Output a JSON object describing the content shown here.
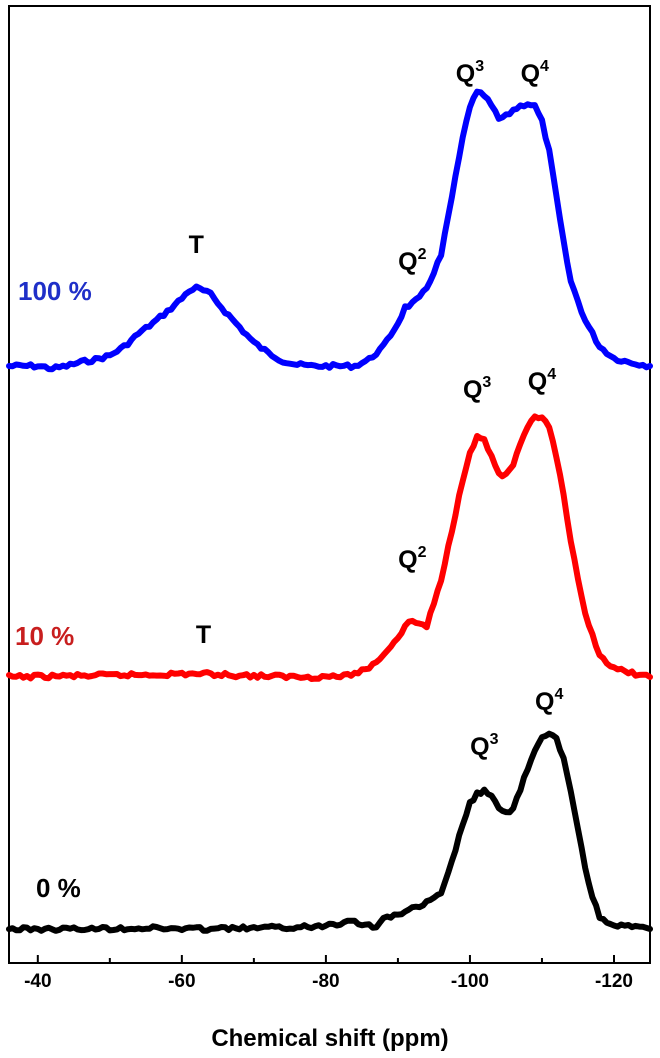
{
  "chart_data": {
    "type": "line",
    "xlabel": "Chemical shift (ppm)",
    "ylabel": "",
    "xlim": [
      -36,
      -125
    ],
    "x_reversed": true,
    "xticks": [
      -40,
      -60,
      -80,
      -100,
      -120
    ],
    "xtick_labels": [
      "-40",
      "-60",
      "-80",
      "-100",
      "-120"
    ],
    "y_axis_shown": false,
    "grid": false,
    "series": [
      {
        "name": "100 %",
        "color": "#0000ff",
        "label_color": "#1f2fc8",
        "x": [
          -36,
          -40,
          -42,
          -44,
          -46,
          -48,
          -50,
          -52,
          -54,
          -56,
          -58,
          -60,
          -61,
          -62,
          -63,
          -64,
          -66,
          -68,
          -70,
          -72,
          -74,
          -76,
          -78,
          -80,
          -84,
          -86,
          -88,
          -90,
          -91,
          -92,
          -93,
          -94,
          -96,
          -97,
          -98,
          -99,
          -100,
          -101,
          -102,
          -103,
          -104,
          -105,
          -106,
          -107,
          -108,
          -109,
          -110,
          -111,
          -112,
          -113,
          -114,
          -116,
          -118,
          -120,
          -122,
          -125
        ],
        "y": [
          0.0,
          0.0,
          -0.02,
          0.0,
          0.03,
          0.05,
          0.08,
          0.15,
          0.25,
          0.33,
          0.42,
          0.52,
          0.58,
          0.6,
          0.58,
          0.55,
          0.42,
          0.3,
          0.18,
          0.1,
          0.04,
          0.01,
          0.0,
          0.0,
          0.0,
          0.05,
          0.15,
          0.33,
          0.45,
          0.48,
          0.52,
          0.6,
          0.85,
          1.15,
          1.45,
          1.75,
          2.0,
          2.1,
          2.08,
          2.0,
          1.9,
          1.92,
          1.97,
          2.0,
          2.02,
          2.0,
          1.88,
          1.65,
          1.3,
          0.95,
          0.65,
          0.35,
          0.15,
          0.06,
          0.03,
          0.0
        ]
      },
      {
        "name": "10 %",
        "color": "#ff0000",
        "label_color": "#c81e1e",
        "x": [
          -36,
          -45,
          -55,
          -62,
          -70,
          -78,
          -83,
          -86,
          -88,
          -90,
          -91,
          -92,
          -93,
          -94,
          -96,
          -98,
          -99,
          -100,
          -101,
          -102,
          -103,
          -104,
          -105,
          -106,
          -107,
          -108,
          -109,
          -110,
          -111,
          -112,
          -113,
          -114,
          -115,
          -116,
          -118,
          -120,
          -125
        ],
        "y": [
          0.0,
          0.01,
          0.02,
          0.03,
          0.01,
          0.0,
          0.01,
          0.08,
          0.2,
          0.35,
          0.45,
          0.5,
          0.47,
          0.45,
          0.85,
          1.45,
          1.75,
          2.0,
          2.12,
          2.1,
          1.95,
          1.8,
          1.78,
          1.88,
          2.05,
          2.2,
          2.3,
          2.3,
          2.2,
          1.95,
          1.6,
          1.2,
          0.85,
          0.55,
          0.2,
          0.07,
          0.0
        ]
      },
      {
        "name": "0 %",
        "color": "#000000",
        "label_color": "#000000",
        "x": [
          -36,
          -45,
          -55,
          -62,
          -70,
          -78,
          -82,
          -83,
          -85,
          -87,
          -88,
          -90,
          -92,
          -94,
          -96,
          -97,
          -98,
          -99,
          -100,
          -101,
          -102,
          -103,
          -104,
          -105,
          -106,
          -107,
          -108,
          -109,
          -110,
          -111,
          -112,
          -113,
          -114,
          -115,
          -116,
          -117,
          -118,
          -120,
          -125
        ],
        "y": [
          0.0,
          0.0,
          0.01,
          0.0,
          0.01,
          0.02,
          0.06,
          0.1,
          0.05,
          0.02,
          0.1,
          0.15,
          0.2,
          0.26,
          0.35,
          0.55,
          0.8,
          1.05,
          1.25,
          1.35,
          1.38,
          1.32,
          1.2,
          1.15,
          1.22,
          1.4,
          1.6,
          1.78,
          1.9,
          1.95,
          1.9,
          1.7,
          1.38,
          1.0,
          0.62,
          0.32,
          0.12,
          0.04,
          0.0
        ]
      }
    ],
    "annotations": [
      {
        "series": "100 %",
        "base": "T",
        "sup": "",
        "ppm": -62
      },
      {
        "series": "100 %",
        "base": "Q",
        "sup": "2",
        "ppm": -92
      },
      {
        "series": "100 %",
        "base": "Q",
        "sup": "3",
        "ppm": -100
      },
      {
        "series": "100 %",
        "base": "Q",
        "sup": "4",
        "ppm": -109
      },
      {
        "series": "10 %",
        "base": "T",
        "sup": "",
        "ppm": -63
      },
      {
        "series": "10 %",
        "base": "Q",
        "sup": "2",
        "ppm": -92
      },
      {
        "series": "10 %",
        "base": "Q",
        "sup": "3",
        "ppm": -101
      },
      {
        "series": "10 %",
        "base": "Q",
        "sup": "4",
        "ppm": -110
      },
      {
        "series": "0 %",
        "base": "Q",
        "sup": "3",
        "ppm": -102
      },
      {
        "series": "0 %",
        "base": "Q",
        "sup": "4",
        "ppm": -111
      }
    ]
  }
}
